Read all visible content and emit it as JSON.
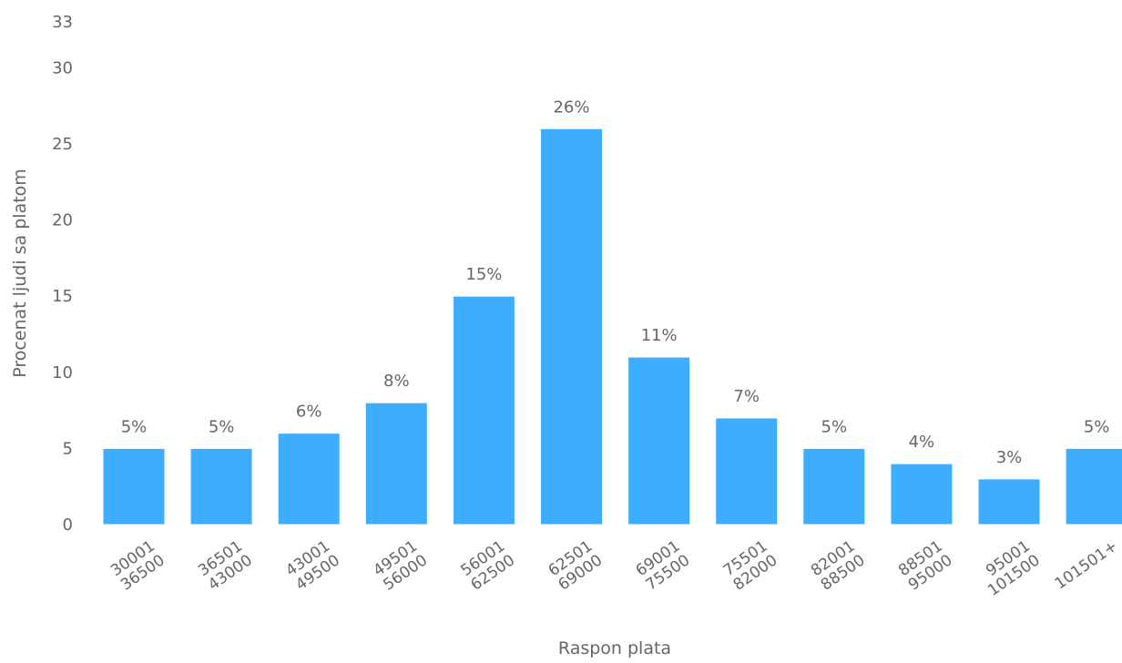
{
  "chart_data": {
    "type": "bar",
    "title": "",
    "xlabel": "Raspon plata",
    "ylabel": "Procenat ljudi sa platom",
    "ylim": [
      0,
      33
    ],
    "yticks": [
      0,
      5,
      10,
      15,
      20,
      25,
      30,
      33
    ],
    "grid": false,
    "legend": "none",
    "bar_color": "#3eadff",
    "categories": [
      [
        "30001",
        "36500"
      ],
      [
        "36501",
        "43000"
      ],
      [
        "43001",
        "49500"
      ],
      [
        "49501",
        "56000"
      ],
      [
        "56001",
        "62500"
      ],
      [
        "62501",
        "69000"
      ],
      [
        "69001",
        "75500"
      ],
      [
        "75501",
        "82000"
      ],
      [
        "82001",
        "88500"
      ],
      [
        "88501",
        "95000"
      ],
      [
        "95001",
        "101500"
      ],
      [
        "101501+"
      ]
    ],
    "values": [
      5,
      5,
      6,
      8,
      15,
      26,
      11,
      7,
      5,
      4,
      3,
      5
    ],
    "data_labels": [
      "5%",
      "5%",
      "6%",
      "8%",
      "15%",
      "26%",
      "11%",
      "7%",
      "5%",
      "4%",
      "3%",
      "5%"
    ]
  }
}
